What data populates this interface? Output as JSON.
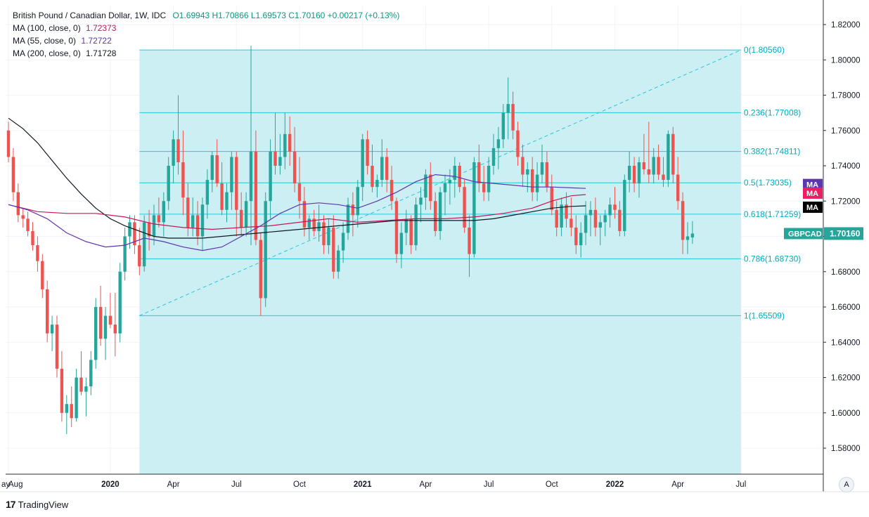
{
  "legend": {
    "title": "British Pound / Canadian Dollar, 1W, IDC",
    "ohlc": "O1.69943  H1.70866  L1.69573  C1.70160  +0.00217 (+0.13%)",
    "ma100_label": "MA (100, close, 0)",
    "ma100_value": "1.72373",
    "ma55_label": "MA (55, close, 0)",
    "ma55_value": "1.72722",
    "ma200_label": "MA (200, close, 0)",
    "ma200_value": "1.71728"
  },
  "footer": {
    "brand": "TradingView",
    "auto_label": "A"
  },
  "colors": {
    "up": "#26a69a",
    "down": "#ef5350",
    "fib": "#26c6da",
    "fib_fill": "#cceff4",
    "ma100": "#c2185b",
    "ma55": "#5e35b1",
    "ma200": "#131722"
  },
  "chart_data": {
    "type": "candlestick",
    "symbol": "GBPCAD",
    "title": "British Pound / Canadian Dollar, 1W, IDC",
    "ylim": [
      1.57,
      1.825
    ],
    "y_ticks": [
      "1.82000",
      "1.80000",
      "1.78000",
      "1.76000",
      "1.74000",
      "1.72000",
      "1.70000",
      "1.68000",
      "1.66000",
      "1.64000",
      "1.62000",
      "1.60000",
      "1.58000"
    ],
    "x_ticks": [
      "ay",
      "Aug",
      "2020",
      "Apr",
      "Jul",
      "Oct",
      "2021",
      "Apr",
      "Jul",
      "Oct",
      "2022",
      "Apr",
      "Jul"
    ],
    "x_tick_weeks": [
      -12,
      0,
      21,
      34,
      47,
      60,
      73,
      86,
      99,
      112,
      125,
      138,
      151
    ],
    "last_price": "1.70160",
    "last_price_value": 1.7016,
    "fib_levels": [
      {
        "ratio": "0",
        "label": "0(1.80560)",
        "price": 1.8056
      },
      {
        "ratio": "0.236",
        "label": "0.236(1.77008)",
        "price": 1.77008
      },
      {
        "ratio": "0.382",
        "label": "0.382(1.74811)",
        "price": 1.74811
      },
      {
        "ratio": "0.5",
        "label": "0.5(1.73035)",
        "price": 1.73035
      },
      {
        "ratio": "0.618",
        "label": "0.618(1.71259)",
        "price": 1.71259
      },
      {
        "ratio": "0.786",
        "label": "0.786(1.68730)",
        "price": 1.6873
      },
      {
        "ratio": "1",
        "label": "1(1.65509)",
        "price": 1.65509
      }
    ],
    "fib_week_range": [
      27,
      151
    ],
    "ma_tags": [
      {
        "label": "MA",
        "color": "#5e35b1",
        "value": 1.7294
      },
      {
        "label": "MA",
        "color": "#e91e63",
        "value": 1.7245
      },
      {
        "label": "MA",
        "color": "#000000",
        "value": 1.7165
      }
    ],
    "candles": [
      [
        1.76,
        1.765,
        1.742,
        1.745
      ],
      [
        1.745,
        1.75,
        1.72,
        1.725
      ],
      [
        1.725,
        1.73,
        1.708,
        1.712
      ],
      [
        1.712,
        1.716,
        1.705,
        1.71
      ],
      [
        1.71,
        1.714,
        1.7,
        1.703
      ],
      [
        1.703,
        1.708,
        1.692,
        1.695
      ],
      [
        1.695,
        1.7,
        1.68,
        1.686
      ],
      [
        1.686,
        1.69,
        1.665,
        1.67
      ],
      [
        1.67,
        1.675,
        1.64,
        1.645
      ],
      [
        1.645,
        1.655,
        1.635,
        1.65
      ],
      [
        1.65,
        1.655,
        1.62,
        1.625
      ],
      [
        1.625,
        1.635,
        1.595,
        1.6
      ],
      [
        1.6,
        1.61,
        1.588,
        1.605
      ],
      [
        1.605,
        1.615,
        1.592,
        1.597
      ],
      [
        1.597,
        1.625,
        1.595,
        1.62
      ],
      [
        1.62,
        1.635,
        1.61,
        1.612
      ],
      [
        1.612,
        1.62,
        1.598,
        1.615
      ],
      [
        1.615,
        1.635,
        1.61,
        1.63
      ],
      [
        1.63,
        1.665,
        1.625,
        1.66
      ],
      [
        1.66,
        1.672,
        1.638,
        1.642
      ],
      [
        1.642,
        1.66,
        1.63,
        1.655
      ],
      [
        1.655,
        1.668,
        1.648,
        1.65
      ],
      [
        1.65,
        1.668,
        1.632,
        1.645
      ],
      [
        1.645,
        1.685,
        1.64,
        1.68
      ],
      [
        1.68,
        1.705,
        1.675,
        1.7
      ],
      [
        1.7,
        1.712,
        1.693,
        1.708
      ],
      [
        1.708,
        1.712,
        1.69,
        1.695
      ],
      [
        1.695,
        1.705,
        1.678,
        1.683
      ],
      [
        1.683,
        1.712,
        1.68,
        1.708
      ],
      [
        1.708,
        1.715,
        1.692,
        1.7
      ],
      [
        1.7,
        1.718,
        1.695,
        1.712
      ],
      [
        1.712,
        1.722,
        1.705,
        1.708
      ],
      [
        1.708,
        1.725,
        1.7,
        1.72
      ],
      [
        1.72,
        1.745,
        1.715,
        1.74
      ],
      [
        1.74,
        1.76,
        1.73,
        1.755
      ],
      [
        1.755,
        1.78,
        1.735,
        1.742
      ],
      [
        1.742,
        1.76,
        1.712,
        1.722
      ],
      [
        1.722,
        1.73,
        1.7,
        1.705
      ],
      [
        1.705,
        1.722,
        1.7,
        1.712
      ],
      [
        1.712,
        1.72,
        1.695,
        1.7
      ],
      [
        1.7,
        1.722,
        1.692,
        1.718
      ],
      [
        1.718,
        1.738,
        1.71,
        1.732
      ],
      [
        1.732,
        1.748,
        1.725,
        1.746
      ],
      [
        1.746,
        1.755,
        1.728,
        1.73
      ],
      [
        1.73,
        1.742,
        1.712,
        1.715
      ],
      [
        1.715,
        1.73,
        1.708,
        1.725
      ],
      [
        1.725,
        1.748,
        1.715,
        1.745
      ],
      [
        1.745,
        1.748,
        1.7,
        1.715
      ],
      [
        1.715,
        1.725,
        1.7,
        1.705
      ],
      [
        1.705,
        1.725,
        1.7,
        1.72
      ],
      [
        1.72,
        1.808,
        1.695,
        1.748
      ],
      [
        1.748,
        1.76,
        1.695,
        1.698
      ],
      [
        1.698,
        1.702,
        1.655,
        1.665
      ],
      [
        1.665,
        1.725,
        1.66,
        1.72
      ],
      [
        1.72,
        1.755,
        1.71,
        1.748
      ],
      [
        1.748,
        1.77,
        1.735,
        1.74
      ],
      [
        1.74,
        1.758,
        1.735,
        1.745
      ],
      [
        1.745,
        1.77,
        1.738,
        1.758
      ],
      [
        1.758,
        1.768,
        1.74,
        1.748
      ],
      [
        1.748,
        1.762,
        1.725,
        1.73
      ],
      [
        1.73,
        1.745,
        1.71,
        1.72
      ],
      [
        1.72,
        1.728,
        1.7,
        1.705
      ],
      [
        1.705,
        1.712,
        1.698,
        1.71
      ],
      [
        1.71,
        1.715,
        1.7,
        1.703
      ],
      [
        1.703,
        1.718,
        1.697,
        1.708
      ],
      [
        1.708,
        1.712,
        1.69,
        1.695
      ],
      [
        1.695,
        1.71,
        1.69,
        1.705
      ],
      [
        1.705,
        1.712,
        1.676,
        1.68
      ],
      [
        1.68,
        1.695,
        1.676,
        1.692
      ],
      [
        1.692,
        1.708,
        1.685,
        1.702
      ],
      [
        1.702,
        1.722,
        1.698,
        1.718
      ],
      [
        1.718,
        1.725,
        1.7,
        1.712
      ],
      [
        1.712,
        1.732,
        1.705,
        1.728
      ],
      [
        1.728,
        1.758,
        1.72,
        1.755
      ],
      [
        1.755,
        1.76,
        1.735,
        1.74
      ],
      [
        1.74,
        1.752,
        1.725,
        1.728
      ],
      [
        1.728,
        1.735,
        1.722,
        1.732
      ],
      [
        1.732,
        1.755,
        1.728,
        1.745
      ],
      [
        1.745,
        1.75,
        1.725,
        1.732
      ],
      [
        1.732,
        1.74,
        1.715,
        1.72
      ],
      [
        1.72,
        1.722,
        1.685,
        1.69
      ],
      [
        1.69,
        1.708,
        1.682,
        1.702
      ],
      [
        1.702,
        1.715,
        1.695,
        1.71
      ],
      [
        1.71,
        1.712,
        1.69,
        1.695
      ],
      [
        1.695,
        1.722,
        1.692,
        1.718
      ],
      [
        1.718,
        1.728,
        1.708,
        1.722
      ],
      [
        1.722,
        1.738,
        1.715,
        1.735
      ],
      [
        1.735,
        1.742,
        1.715,
        1.72
      ],
      [
        1.72,
        1.725,
        1.7,
        1.703
      ],
      [
        1.703,
        1.728,
        1.698,
        1.725
      ],
      [
        1.725,
        1.735,
        1.712,
        1.73
      ],
      [
        1.73,
        1.738,
        1.718,
        1.732
      ],
      [
        1.732,
        1.745,
        1.722,
        1.74
      ],
      [
        1.74,
        1.742,
        1.725,
        1.728
      ],
      [
        1.728,
        1.732,
        1.702,
        1.705
      ],
      [
        1.705,
        1.712,
        1.677,
        1.69
      ],
      [
        1.69,
        1.745,
        1.688,
        1.742
      ],
      [
        1.742,
        1.752,
        1.725,
        1.73
      ],
      [
        1.73,
        1.74,
        1.72,
        1.725
      ],
      [
        1.725,
        1.745,
        1.72,
        1.74
      ],
      [
        1.74,
        1.758,
        1.735,
        1.75
      ],
      [
        1.75,
        1.762,
        1.738,
        1.755
      ],
      [
        1.755,
        1.775,
        1.75,
        1.77
      ],
      [
        1.77,
        1.79,
        1.755,
        1.775
      ],
      [
        1.775,
        1.782,
        1.755,
        1.76
      ],
      [
        1.76,
        1.765,
        1.74,
        1.745
      ],
      [
        1.745,
        1.752,
        1.728,
        1.735
      ],
      [
        1.735,
        1.742,
        1.725,
        1.738
      ],
      [
        1.738,
        1.745,
        1.72,
        1.725
      ],
      [
        1.725,
        1.742,
        1.72,
        1.735
      ],
      [
        1.735,
        1.752,
        1.73,
        1.742
      ],
      [
        1.742,
        1.748,
        1.725,
        1.728
      ],
      [
        1.728,
        1.735,
        1.712,
        1.715
      ],
      [
        1.715,
        1.72,
        1.7,
        1.705
      ],
      [
        1.705,
        1.722,
        1.7,
        1.718
      ],
      [
        1.718,
        1.725,
        1.705,
        1.71
      ],
      [
        1.71,
        1.722,
        1.7,
        1.705
      ],
      [
        1.705,
        1.712,
        1.69,
        1.695
      ],
      [
        1.695,
        1.708,
        1.688,
        1.702
      ],
      [
        1.702,
        1.72,
        1.695,
        1.712
      ],
      [
        1.712,
        1.72,
        1.7,
        1.715
      ],
      [
        1.715,
        1.722,
        1.7,
        1.705
      ],
      [
        1.705,
        1.712,
        1.695,
        1.708
      ],
      [
        1.708,
        1.715,
        1.7,
        1.712
      ],
      [
        1.712,
        1.722,
        1.705,
        1.718
      ],
      [
        1.718,
        1.728,
        1.71,
        1.715
      ],
      [
        1.715,
        1.72,
        1.7,
        1.703
      ],
      [
        1.703,
        1.735,
        1.7,
        1.732
      ],
      [
        1.732,
        1.748,
        1.725,
        1.74
      ],
      [
        1.74,
        1.745,
        1.725,
        1.73
      ],
      [
        1.73,
        1.745,
        1.722,
        1.742
      ],
      [
        1.742,
        1.758,
        1.735,
        1.738
      ],
      [
        1.738,
        1.765,
        1.73,
        1.735
      ],
      [
        1.735,
        1.75,
        1.73,
        1.745
      ],
      [
        1.745,
        1.752,
        1.732,
        1.735
      ],
      [
        1.735,
        1.745,
        1.728,
        1.732
      ],
      [
        1.732,
        1.76,
        1.728,
        1.758
      ],
      [
        1.758,
        1.762,
        1.73,
        1.735
      ],
      [
        1.735,
        1.745,
        1.715,
        1.72
      ],
      [
        1.72,
        1.725,
        1.69,
        1.698
      ],
      [
        1.698,
        1.708,
        1.69,
        1.7
      ],
      [
        1.6994,
        1.70866,
        1.69573,
        1.7016
      ]
    ],
    "ma100": [
      [
        0,
        1.718
      ],
      [
        6,
        1.714
      ],
      [
        12,
        1.713
      ],
      [
        18,
        1.713
      ],
      [
        24,
        1.711
      ],
      [
        30,
        1.707
      ],
      [
        36,
        1.705
      ],
      [
        42,
        1.704
      ],
      [
        48,
        1.705
      ],
      [
        54,
        1.706
      ],
      [
        60,
        1.708
      ],
      [
        66,
        1.71
      ],
      [
        72,
        1.708
      ],
      [
        78,
        1.709
      ],
      [
        84,
        1.71
      ],
      [
        90,
        1.71
      ],
      [
        96,
        1.711
      ],
      [
        102,
        1.713
      ],
      [
        108,
        1.716
      ],
      [
        112,
        1.72
      ],
      [
        116,
        1.723
      ],
      [
        119,
        1.7237
      ]
    ],
    "ma55": [
      [
        0,
        1.718
      ],
      [
        4,
        1.715
      ],
      [
        8,
        1.71
      ],
      [
        12,
        1.702
      ],
      [
        16,
        1.697
      ],
      [
        20,
        1.694
      ],
      [
        24,
        1.695
      ],
      [
        28,
        1.699
      ],
      [
        32,
        1.697
      ],
      [
        36,
        1.694
      ],
      [
        40,
        1.692
      ],
      [
        44,
        1.694
      ],
      [
        48,
        1.7
      ],
      [
        52,
        1.706
      ],
      [
        56,
        1.713
      ],
      [
        60,
        1.718
      ],
      [
        64,
        1.719
      ],
      [
        68,
        1.718
      ],
      [
        72,
        1.716
      ],
      [
        76,
        1.72
      ],
      [
        80,
        1.725
      ],
      [
        84,
        1.731
      ],
      [
        88,
        1.735
      ],
      [
        92,
        1.734
      ],
      [
        96,
        1.731
      ],
      [
        100,
        1.73
      ],
      [
        104,
        1.729
      ],
      [
        108,
        1.728
      ],
      [
        112,
        1.728
      ],
      [
        116,
        1.7275
      ],
      [
        119,
        1.7272
      ]
    ],
    "ma200": [
      [
        0,
        1.767
      ],
      [
        3,
        1.761
      ],
      [
        6,
        1.753
      ],
      [
        9,
        1.743
      ],
      [
        12,
        1.733
      ],
      [
        15,
        1.724
      ],
      [
        18,
        1.716
      ],
      [
        21,
        1.71
      ],
      [
        24,
        1.706
      ],
      [
        27,
        1.703
      ],
      [
        30,
        1.7
      ],
      [
        33,
        1.699
      ],
      [
        36,
        1.699
      ],
      [
        40,
        1.699
      ],
      [
        44,
        1.7
      ],
      [
        48,
        1.701
      ],
      [
        52,
        1.702
      ],
      [
        56,
        1.703
      ],
      [
        60,
        1.704
      ],
      [
        64,
        1.705
      ],
      [
        68,
        1.706
      ],
      [
        72,
        1.707
      ],
      [
        76,
        1.708
      ],
      [
        80,
        1.709
      ],
      [
        84,
        1.709
      ],
      [
        88,
        1.709
      ],
      [
        92,
        1.709
      ],
      [
        96,
        1.709
      ],
      [
        100,
        1.71
      ],
      [
        104,
        1.712
      ],
      [
        108,
        1.714
      ],
      [
        112,
        1.716
      ],
      [
        116,
        1.717
      ],
      [
        119,
        1.7173
      ]
    ]
  }
}
